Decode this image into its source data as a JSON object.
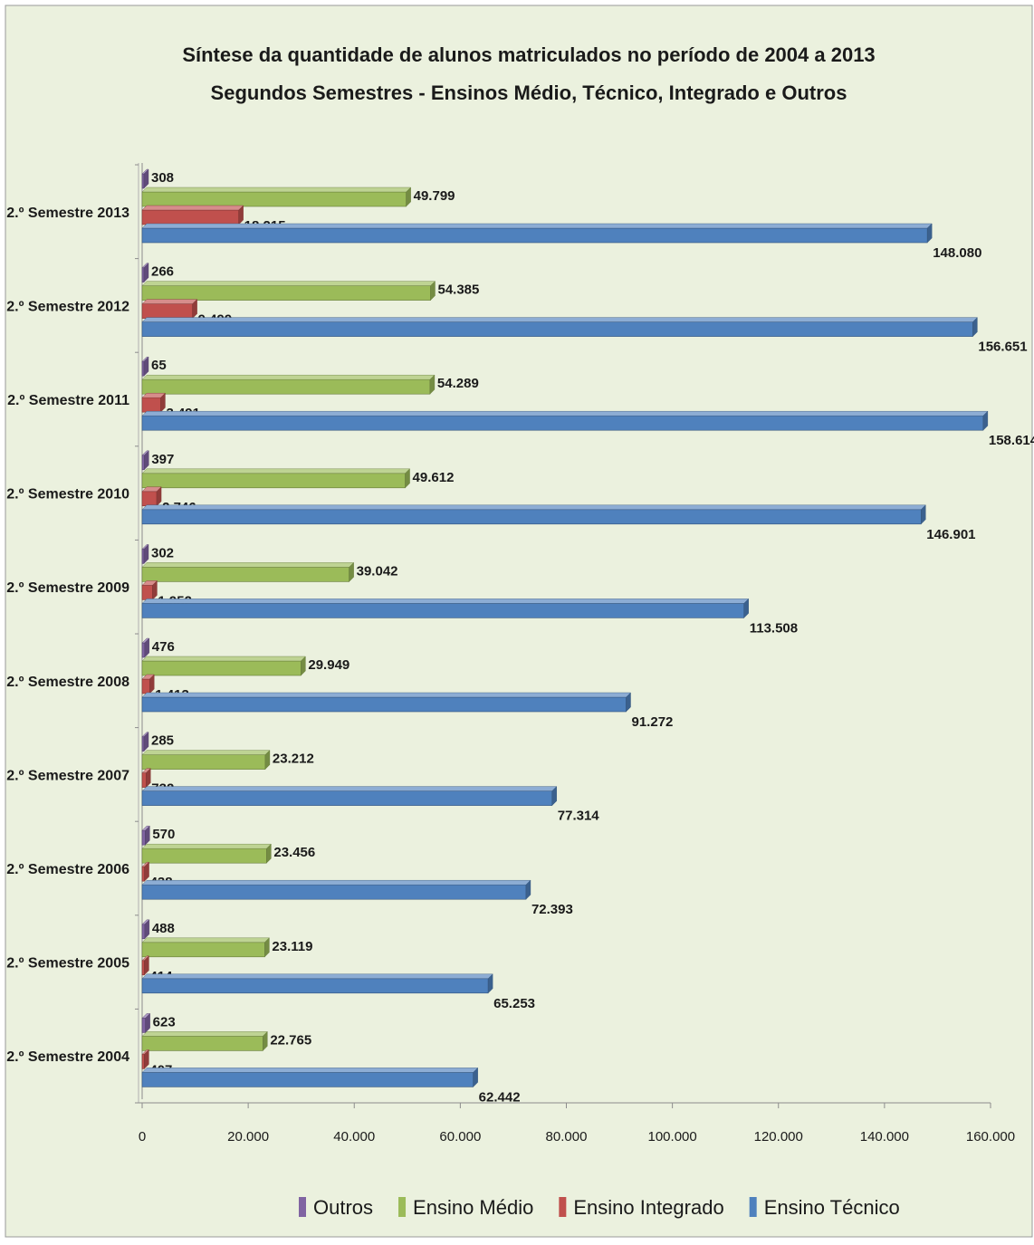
{
  "chart_data": {
    "type": "bar",
    "orientation": "horizontal",
    "title": "Síntese da quantidade de alunos matriculados no período de  2004 a 2013",
    "subtitle": "Segundos Semestres - Ensinos Médio, Técnico, Integrado e Outros",
    "categories": [
      "2.º Semestre 2013",
      "2.º Semestre 2012",
      "2.º Semestre 2011",
      "2.º Semestre 2010",
      "2.º Semestre 2009",
      "2.º Semestre 2008",
      "2.º Semestre 2007",
      "2.º Semestre 2006",
      "2.º Semestre 2005",
      "2.º Semestre 2004"
    ],
    "series": [
      {
        "name": "Outros",
        "color": "#8064a2",
        "values": [
          308,
          266,
          65,
          397,
          302,
          476,
          285,
          570,
          488,
          623
        ],
        "labels": [
          "308",
          "266",
          "65",
          "397",
          "302",
          "476",
          "285",
          "570",
          "488",
          "623"
        ]
      },
      {
        "name": "Ensino Médio",
        "color": "#9bbb59",
        "values": [
          49799,
          54385,
          54289,
          49612,
          39042,
          29949,
          23212,
          23456,
          23119,
          22765
        ],
        "labels": [
          "49.799",
          "54.385",
          "54.289",
          "49.612",
          "39.042",
          "29.949",
          "23.212",
          "23.456",
          "23.119",
          "22.765"
        ]
      },
      {
        "name": "Ensino Integrado",
        "color": "#c0504d",
        "values": [
          18215,
          9499,
          3491,
          2746,
          1952,
          1413,
          732,
          438,
          414,
          407
        ],
        "labels": [
          "18.215",
          "9.499",
          "3.491",
          "2.746",
          "1.952",
          "1.413",
          "732",
          "438",
          "414",
          "407"
        ]
      },
      {
        "name": "Ensino Técnico",
        "color": "#4f81bd",
        "values": [
          148080,
          156651,
          158614,
          146901,
          113508,
          91272,
          77314,
          72393,
          65253,
          62442
        ],
        "labels": [
          "148.080",
          "156.651",
          "158.614",
          "146.901",
          "113.508",
          "91.272",
          "77.314",
          "72.393",
          "65.253",
          "62.442"
        ]
      }
    ],
    "xlim": [
      0,
      160000
    ],
    "x_ticks": [
      {
        "value": 0,
        "label": "0"
      },
      {
        "value": 20000,
        "label": "20.000"
      },
      {
        "value": 40000,
        "label": "40.000"
      },
      {
        "value": 60000,
        "label": "60.000"
      },
      {
        "value": 80000,
        "label": "80.000"
      },
      {
        "value": 100000,
        "label": "100.000"
      },
      {
        "value": 120000,
        "label": "120.000"
      },
      {
        "value": 140000,
        "label": "140.000"
      },
      {
        "value": 160000,
        "label": "160.000"
      }
    ],
    "grid": false,
    "legend_position": "bottom",
    "background_color": "#ebf1de"
  }
}
